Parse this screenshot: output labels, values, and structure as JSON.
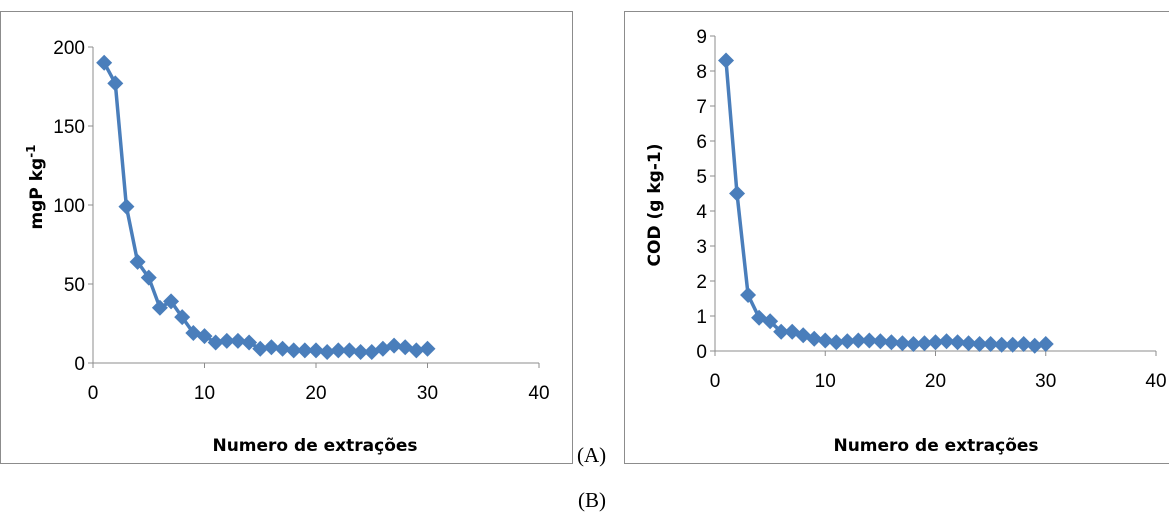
{
  "chart_data": [
    {
      "type": "line",
      "xlabel": "Numero de extrações",
      "ylabel_base": "mgP kg",
      "ylabel_sup": "-1",
      "xlim": [
        0,
        40
      ],
      "ylim": [
        0,
        200
      ],
      "xticks": [
        0,
        10,
        20,
        30,
        40
      ],
      "yticks": [
        0,
        50,
        100,
        150,
        200
      ],
      "grid": false,
      "legend": "none",
      "color": "#4a7ebb",
      "marker": "diamond",
      "series": [
        {
          "x": [
            1,
            2,
            3,
            4,
            5,
            6,
            7,
            8,
            9,
            10,
            11,
            12,
            13,
            14,
            15,
            16,
            17,
            18,
            19,
            20,
            21,
            22,
            23,
            24,
            25,
            26,
            27,
            28,
            29,
            30
          ],
          "values": [
            190,
            177,
            99,
            64,
            54,
            35,
            39,
            29,
            19,
            17,
            13,
            14,
            14,
            13,
            9,
            10,
            9,
            8,
            8,
            8,
            7,
            8,
            8,
            7,
            7,
            9,
            11,
            10,
            8,
            9
          ]
        }
      ]
    },
    {
      "type": "line",
      "xlabel": "Numero de extrações",
      "ylabel": "COD (g kg-1)",
      "xlim": [
        0,
        40
      ],
      "ylim": [
        0,
        9
      ],
      "xticks": [
        0,
        10,
        20,
        30,
        40
      ],
      "yticks": [
        0,
        1,
        2,
        3,
        4,
        5,
        6,
        7,
        8,
        9
      ],
      "grid": false,
      "legend": "none",
      "color": "#4a7ebb",
      "marker": "diamond",
      "series": [
        {
          "x": [
            1,
            2,
            3,
            4,
            5,
            6,
            7,
            8,
            9,
            10,
            11,
            12,
            13,
            14,
            15,
            16,
            17,
            18,
            19,
            20,
            21,
            22,
            23,
            24,
            25,
            26,
            27,
            28,
            29,
            30
          ],
          "values": [
            8.3,
            4.5,
            1.6,
            0.95,
            0.85,
            0.55,
            0.55,
            0.45,
            0.35,
            0.3,
            0.25,
            0.28,
            0.3,
            0.3,
            0.28,
            0.25,
            0.22,
            0.2,
            0.22,
            0.25,
            0.28,
            0.25,
            0.22,
            0.2,
            0.2,
            0.18,
            0.18,
            0.2,
            0.15,
            0.2
          ]
        }
      ]
    }
  ],
  "captions": {
    "a": "(A)",
    "b": "(B)"
  }
}
